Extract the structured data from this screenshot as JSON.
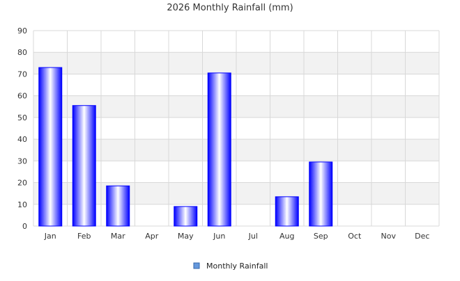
{
  "chart_data": {
    "type": "bar",
    "title": "2026 Monthly Rainfall (mm)",
    "xlabel": "",
    "ylabel": "",
    "categories": [
      "Jan",
      "Feb",
      "Mar",
      "Apr",
      "May",
      "Jun",
      "Jul",
      "Aug",
      "Sep",
      "Oct",
      "Nov",
      "Dec"
    ],
    "series": [
      {
        "name": "Monthly Rainfall",
        "values": [
          73,
          55.5,
          18.5,
          0,
          9,
          70.5,
          0,
          13.5,
          29.5,
          0,
          0,
          0
        ],
        "color": "#0000ff"
      }
    ],
    "ylim": [
      0,
      90
    ],
    "yticks": [
      0,
      10,
      20,
      30,
      40,
      50,
      60,
      70,
      80,
      90
    ],
    "grid": true,
    "legend_position": "bottom-center",
    "colors": {
      "bar_edge": "#0000ff",
      "bar_highlight": "#ffffff",
      "band_fill": "#f2f2f2",
      "grid_line": "#d8d8d8",
      "text": "#333333",
      "legend_swatch": "#6699dd"
    }
  }
}
